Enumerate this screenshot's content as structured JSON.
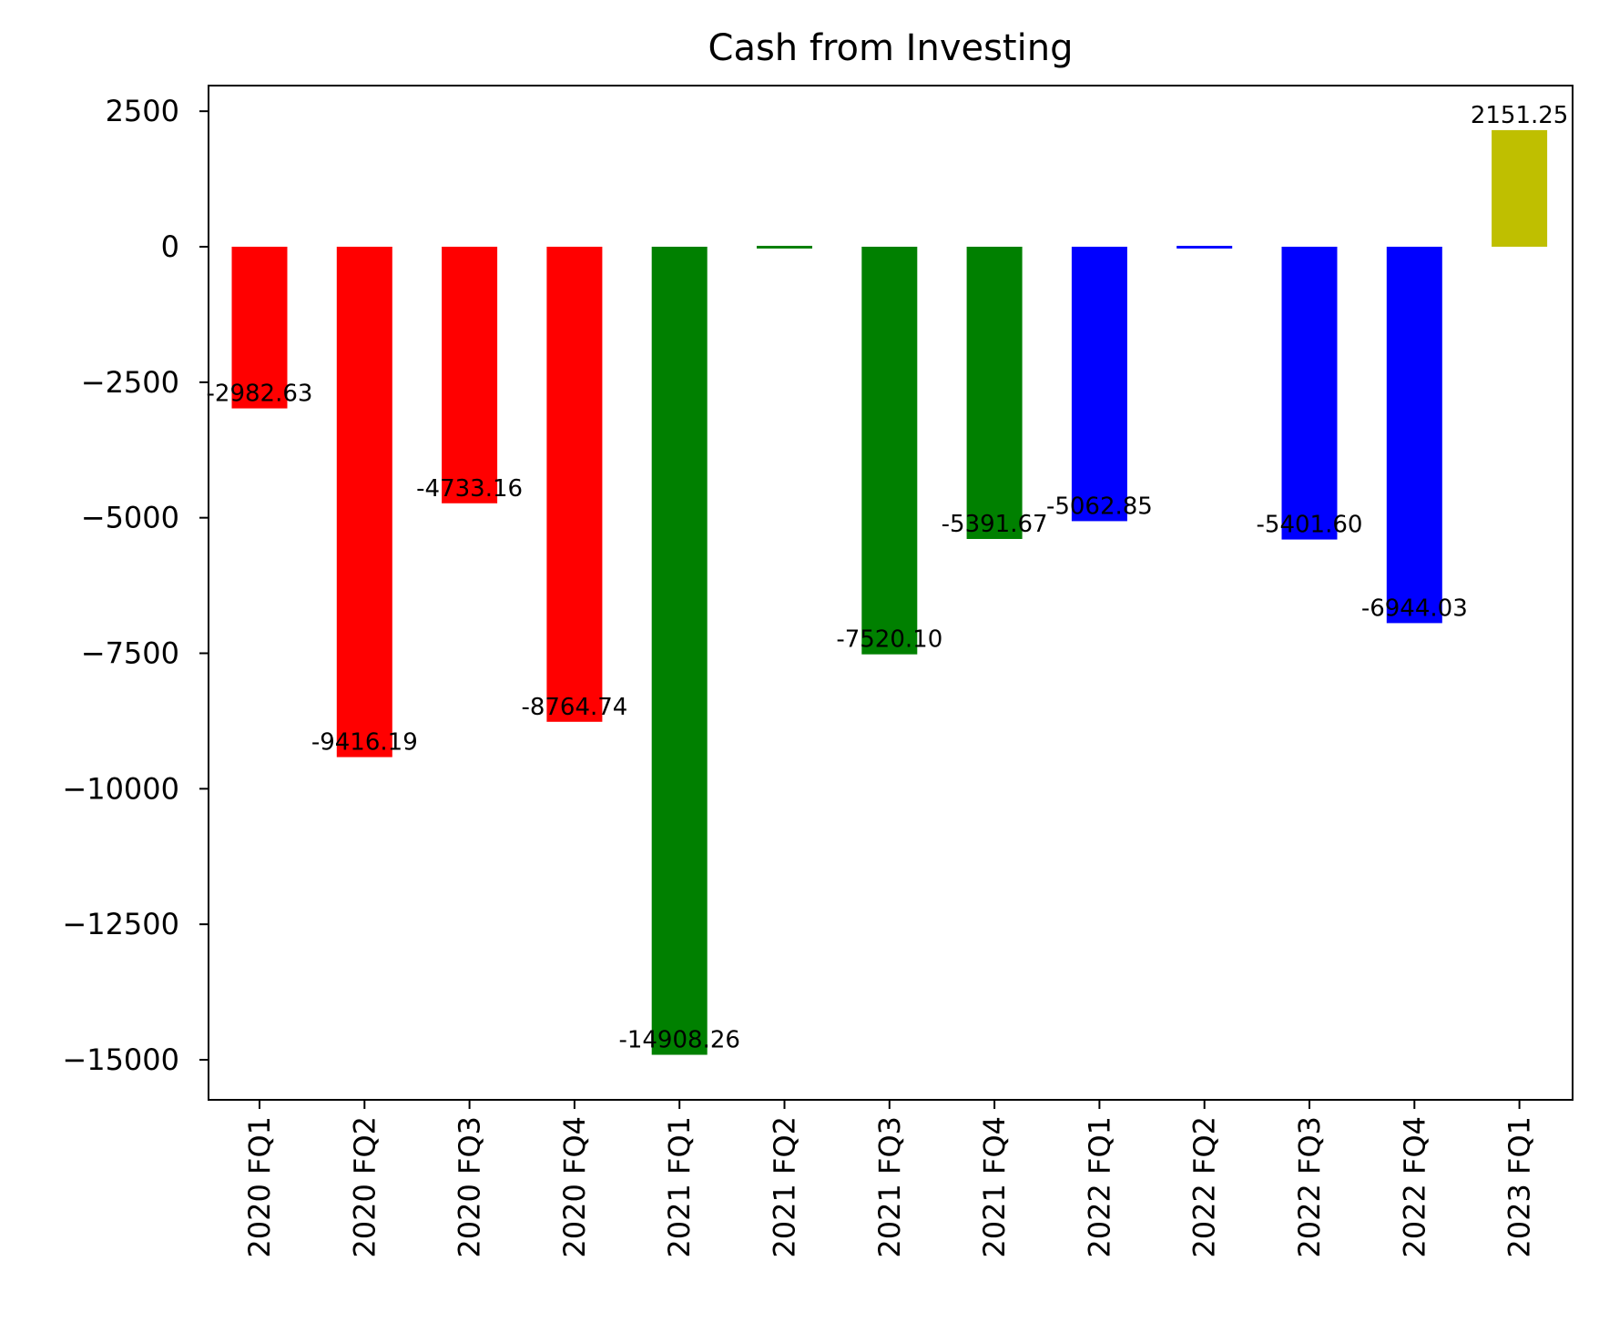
{
  "chart_data": {
    "type": "bar",
    "title": "Cash from Investing",
    "xlabel": "",
    "ylabel": "",
    "categories": [
      "2020 FQ1",
      "2020 FQ2",
      "2020 FQ3",
      "2020 FQ4",
      "2021 FQ1",
      "2021 FQ2",
      "2021 FQ3",
      "2021 FQ4",
      "2022 FQ1",
      "2022 FQ2",
      "2022 FQ3",
      "2022 FQ4",
      "2023 FQ1"
    ],
    "values": [
      -2982.63,
      -9416.19,
      -4733.16,
      -8764.74,
      -14908.26,
      -50,
      -7520.1,
      -5391.67,
      -5062.85,
      -50,
      -5401.6,
      -6944.03,
      2151.25
    ],
    "data_labels": [
      "-2982.63",
      "-9416.19",
      "-4733.16",
      "-8764.74",
      "-14908.26",
      "",
      "-7520.10",
      "-5391.67",
      "-5062.85",
      "",
      "-5401.60",
      "-6944.03",
      "2151.25"
    ],
    "colors": [
      "#ff0000",
      "#ff0000",
      "#ff0000",
      "#ff0000",
      "#008000",
      "#008000",
      "#008000",
      "#008000",
      "#0000ff",
      "#0000ff",
      "#0000ff",
      "#0000ff",
      "#bfbf00"
    ],
    "yticks": [
      2500,
      0,
      -2500,
      -5000,
      -7500,
      -10000,
      -12500,
      -15000
    ],
    "ytick_labels": [
      "2500",
      "0",
      "−2500",
      "−5000",
      "−7500",
      "−10000",
      "−12500",
      "−15000"
    ],
    "ylim": [
      -15750,
      3000
    ],
    "grid": false,
    "legend": "none"
  }
}
